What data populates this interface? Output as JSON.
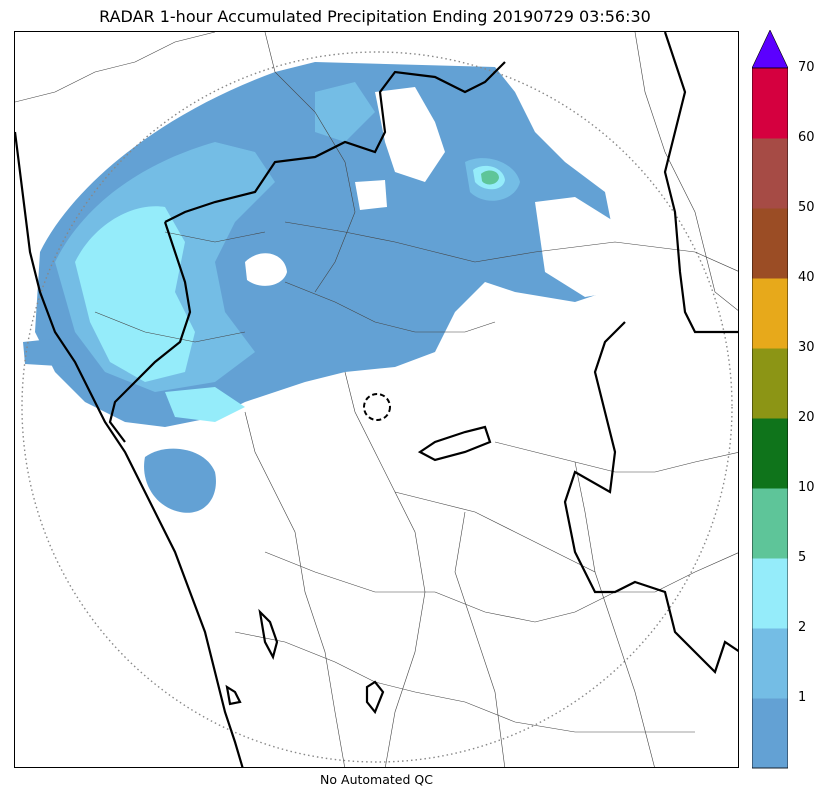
{
  "title": "RADAR 1-hour Accumulated Precipitation Ending 20190729 03:56:30",
  "footnote": "No Automated QC",
  "map": {
    "layers": [
      "precipitation-field",
      "district-boundaries",
      "state-boundaries",
      "coastline",
      "radar-range-ring",
      "radar-site-marker"
    ],
    "ring_style": "dotted gray",
    "radar_marker": "dashed circle"
  },
  "colorbar": {
    "extend": "max",
    "extend_color": "#5b00ff",
    "levels": [
      {
        "label": "",
        "color": "#63a1d4"
      },
      {
        "label": "1",
        "color": "#74bde5"
      },
      {
        "label": "2",
        "color": "#95ecfa"
      },
      {
        "label": "5",
        "color": "#5ec599"
      },
      {
        "label": "10",
        "color": "#0f741b"
      },
      {
        "label": "20",
        "color": "#8c9515"
      },
      {
        "label": "30",
        "color": "#e7a91b"
      },
      {
        "label": "40",
        "color": "#9b4d25"
      },
      {
        "label": "50",
        "color": "#a64b45"
      },
      {
        "label": "60",
        "color": "#d5003f"
      }
    ],
    "top_label": "70"
  }
}
